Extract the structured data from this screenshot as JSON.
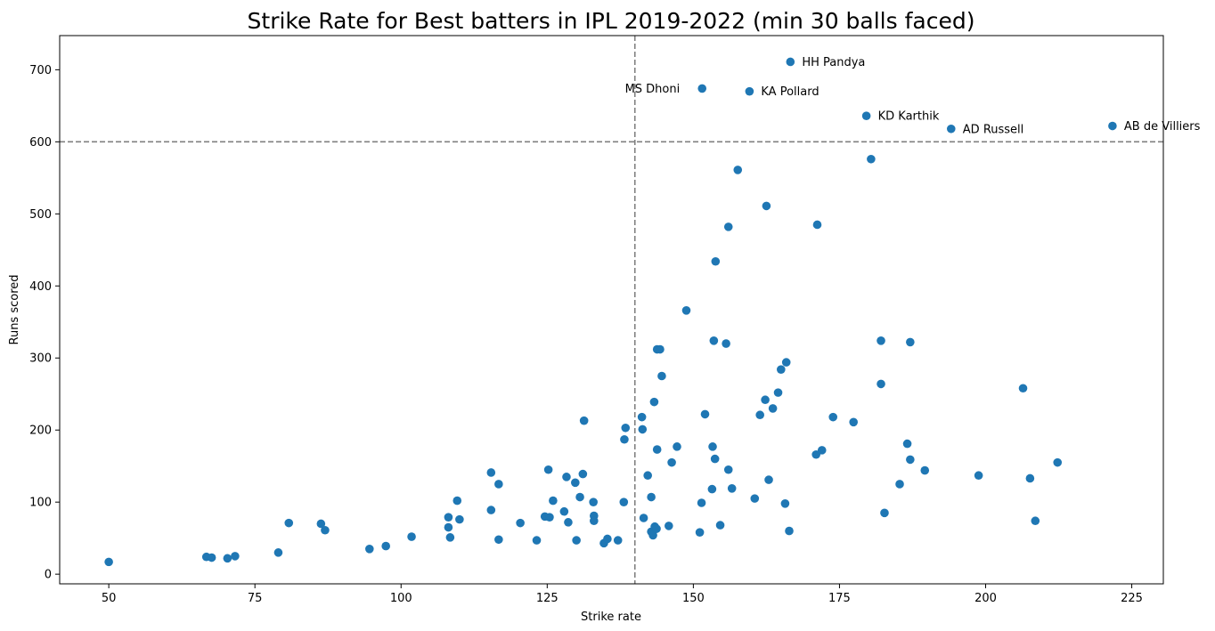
{
  "chart_data": {
    "type": "scatter",
    "title": "Strike Rate for Best batters in IPL 2019-2022 (min 30 balls faced)",
    "xlabel": "Strike rate",
    "ylabel": "Runs scored",
    "xlim": [
      41.6,
      230.4
    ],
    "ylim": [
      -13.4,
      747.4
    ],
    "xticks": [
      50,
      75,
      100,
      125,
      150,
      175,
      200,
      225
    ],
    "yticks": [
      0,
      100,
      200,
      300,
      400,
      500,
      600,
      700
    ],
    "grid": false,
    "marker_color": "#1f77b4",
    "reference_lines": {
      "x": 140,
      "y": 600,
      "color": "#808080",
      "style": "dashed"
    },
    "annotations": [
      {
        "label": "HH Pandya",
        "x": 166.6,
        "y": 711,
        "align": "right"
      },
      {
        "label": "MS Dhoni",
        "x": 151.5,
        "y": 674,
        "align": "left"
      },
      {
        "label": "KA Pollard",
        "x": 159.6,
        "y": 670,
        "align": "right"
      },
      {
        "label": "KD Karthik",
        "x": 179.6,
        "y": 636,
        "align": "right"
      },
      {
        "label": "AD Russell",
        "x": 194.1,
        "y": 618,
        "align": "right"
      },
      {
        "label": "AB de Villiers",
        "x": 221.7,
        "y": 622,
        "align": "right"
      }
    ],
    "points": [
      [
        50.0,
        17
      ],
      [
        66.7,
        24
      ],
      [
        67.6,
        23
      ],
      [
        70.3,
        22
      ],
      [
        71.6,
        25
      ],
      [
        79.0,
        30
      ],
      [
        80.8,
        71
      ],
      [
        86.3,
        70
      ],
      [
        87.0,
        61
      ],
      [
        94.6,
        35
      ],
      [
        97.4,
        39
      ],
      [
        101.8,
        52
      ],
      [
        108.1,
        79
      ],
      [
        108.1,
        65
      ],
      [
        108.4,
        51
      ],
      [
        109.6,
        102
      ],
      [
        110.0,
        76
      ],
      [
        115.4,
        141
      ],
      [
        115.4,
        89
      ],
      [
        116.7,
        125
      ],
      [
        116.7,
        48
      ],
      [
        120.4,
        71
      ],
      [
        123.2,
        47
      ],
      [
        124.6,
        80
      ],
      [
        125.2,
        145
      ],
      [
        125.4,
        79
      ],
      [
        126.0,
        102
      ],
      [
        127.9,
        87
      ],
      [
        128.3,
        135
      ],
      [
        128.6,
        72
      ],
      [
        129.8,
        127
      ],
      [
        130.0,
        47
      ],
      [
        130.6,
        107
      ],
      [
        131.1,
        139
      ],
      [
        131.3,
        213
      ],
      [
        132.9,
        100
      ],
      [
        133.0,
        81
      ],
      [
        133.0,
        74
      ],
      [
        134.7,
        43
      ],
      [
        135.3,
        49
      ],
      [
        137.1,
        47
      ],
      [
        138.1,
        100
      ],
      [
        138.2,
        187
      ],
      [
        138.4,
        203
      ],
      [
        141.2,
        218
      ],
      [
        141.3,
        201
      ],
      [
        141.5,
        78
      ],
      [
        142.2,
        137
      ],
      [
        142.8,
        107
      ],
      [
        142.8,
        59
      ],
      [
        143.1,
        54
      ],
      [
        143.3,
        239
      ],
      [
        143.4,
        66
      ],
      [
        143.7,
        63
      ],
      [
        143.8,
        173
      ],
      [
        143.8,
        312
      ],
      [
        144.3,
        312
      ],
      [
        144.6,
        275
      ],
      [
        145.8,
        67
      ],
      [
        146.3,
        155
      ],
      [
        147.2,
        177
      ],
      [
        148.8,
        366
      ],
      [
        151.1,
        58
      ],
      [
        151.4,
        99
      ],
      [
        151.5,
        674
      ],
      [
        152.0,
        222
      ],
      [
        153.2,
        118
      ],
      [
        153.3,
        177
      ],
      [
        153.5,
        324
      ],
      [
        153.7,
        160
      ],
      [
        153.8,
        434
      ],
      [
        154.6,
        68
      ],
      [
        155.6,
        320
      ],
      [
        156.0,
        145
      ],
      [
        156.0,
        482
      ],
      [
        156.6,
        119
      ],
      [
        157.6,
        561
      ],
      [
        159.6,
        670
      ],
      [
        160.5,
        105
      ],
      [
        161.4,
        221
      ],
      [
        162.3,
        242
      ],
      [
        162.5,
        511
      ],
      [
        162.9,
        131
      ],
      [
        163.6,
        230
      ],
      [
        164.5,
        252
      ],
      [
        165.0,
        284
      ],
      [
        165.7,
        98
      ],
      [
        165.9,
        294
      ],
      [
        166.4,
        60
      ],
      [
        166.6,
        711
      ],
      [
        171.0,
        166
      ],
      [
        171.2,
        485
      ],
      [
        172.0,
        172
      ],
      [
        173.9,
        218
      ],
      [
        177.4,
        211
      ],
      [
        179.6,
        636
      ],
      [
        180.4,
        576
      ],
      [
        182.1,
        324
      ],
      [
        182.1,
        264
      ],
      [
        182.7,
        85
      ],
      [
        185.3,
        125
      ],
      [
        186.6,
        181
      ],
      [
        187.1,
        322
      ],
      [
        187.1,
        159
      ],
      [
        189.6,
        144
      ],
      [
        194.1,
        618
      ],
      [
        198.8,
        137
      ],
      [
        206.4,
        258
      ],
      [
        207.6,
        133
      ],
      [
        208.5,
        74
      ],
      [
        212.3,
        155
      ],
      [
        221.7,
        622
      ]
    ]
  }
}
